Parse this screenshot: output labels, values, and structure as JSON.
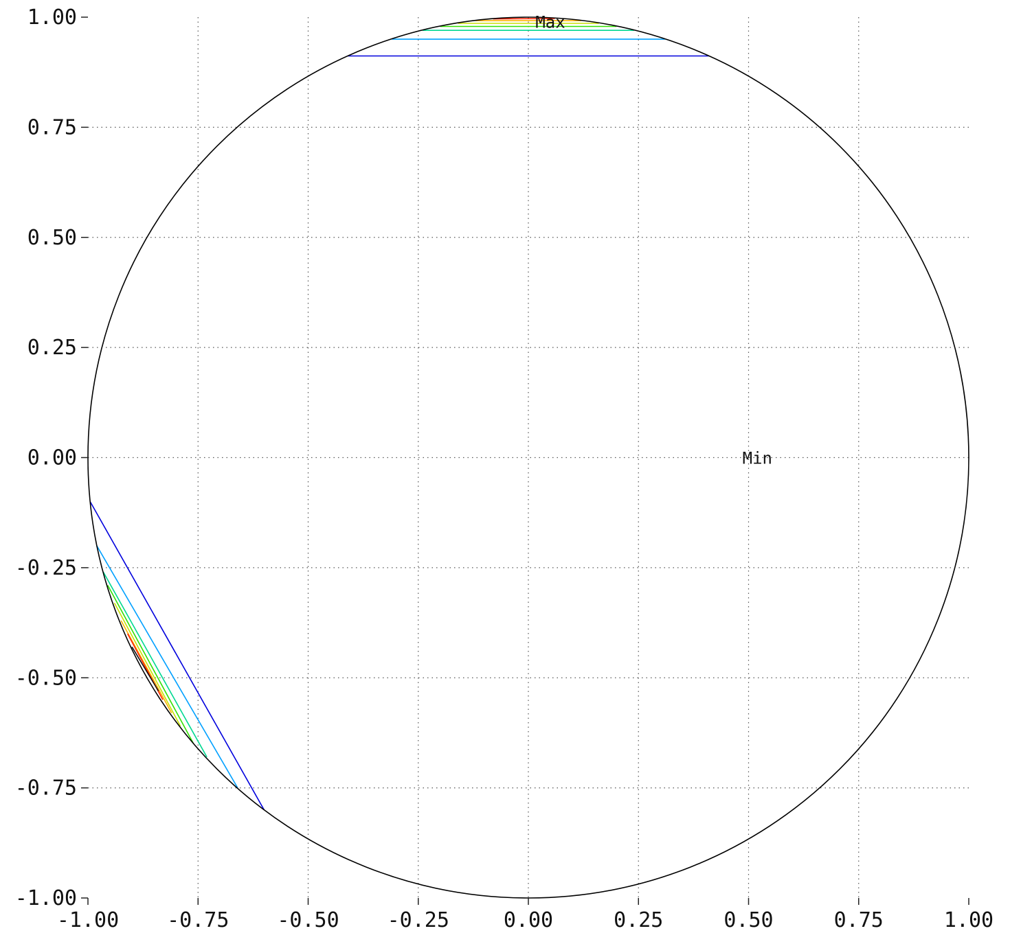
{
  "chart_data": {
    "type": "contour",
    "title": "",
    "xlabel": "",
    "ylabel": "",
    "xlim": [
      -1.0,
      1.0
    ],
    "ylim": [
      -1.0,
      1.0
    ],
    "grid": true,
    "x_ticks": [
      -1.0,
      -0.75,
      -0.5,
      -0.25,
      0.0,
      0.25,
      0.5,
      0.75,
      1.0
    ],
    "y_ticks": [
      -1.0,
      -0.75,
      -0.5,
      -0.25,
      0.0,
      0.25,
      0.5,
      0.75,
      1.0
    ],
    "x_tick_labels": [
      "-1.00",
      "-0.75",
      "-0.50",
      "-0.25",
      "0.00",
      "0.25",
      "0.50",
      "0.75",
      "1.00"
    ],
    "y_tick_labels": [
      "-1.00",
      "-0.75",
      "-0.50",
      "-0.25",
      "0.00",
      "0.25",
      "0.50",
      "0.75",
      "1.00"
    ],
    "boundary": {
      "shape": "unit-circle",
      "color": "#000000"
    },
    "annotations": [
      {
        "text": "Max",
        "x": 0.05,
        "y": 0.99
      },
      {
        "text": "Min",
        "x": 0.52,
        "y": 0.0
      }
    ],
    "contours": [
      {
        "color": "#0000dd",
        "points": [
          [
            -0.41,
            0.912
          ],
          [
            0.41,
            0.912
          ]
        ]
      },
      {
        "color": "#00a0ff",
        "points": [
          [
            -0.31,
            0.95
          ],
          [
            0.31,
            0.95
          ]
        ]
      },
      {
        "color": "#00d890",
        "points": [
          [
            -0.24,
            0.97
          ],
          [
            0.24,
            0.97
          ]
        ]
      },
      {
        "color": "#30e000",
        "points": [
          [
            -0.2,
            0.979
          ],
          [
            0.2,
            0.979
          ]
        ]
      },
      {
        "color": "#c8e000",
        "points": [
          [
            -0.16,
            0.986
          ],
          [
            0.16,
            0.986
          ]
        ]
      },
      {
        "color": "#ffb000",
        "points": [
          [
            -0.12,
            0.992
          ],
          [
            0.12,
            0.992
          ]
        ]
      },
      {
        "color": "#ff2000",
        "points": [
          [
            -0.08,
            0.996
          ],
          [
            0.06,
            0.997
          ]
        ]
      },
      {
        "color": "#0000dd",
        "points": [
          [
            -0.995,
            -0.1
          ],
          [
            -0.6,
            -0.8
          ]
        ]
      },
      {
        "color": "#00a0ff",
        "points": [
          [
            -0.98,
            -0.2
          ],
          [
            -0.66,
            -0.75
          ]
        ]
      },
      {
        "color": "#00d890",
        "points": [
          [
            -0.965,
            -0.26
          ],
          [
            -0.73,
            -0.68
          ]
        ]
      },
      {
        "color": "#30e000",
        "points": [
          [
            -0.955,
            -0.29
          ],
          [
            -0.76,
            -0.65
          ]
        ]
      },
      {
        "color": "#c8e000",
        "points": [
          [
            -0.94,
            -0.33
          ],
          [
            -0.79,
            -0.61
          ]
        ]
      },
      {
        "color": "#ffb000",
        "points": [
          [
            -0.925,
            -0.37
          ],
          [
            -0.81,
            -0.58
          ]
        ]
      },
      {
        "color": "#ff2000",
        "points": [
          [
            -0.91,
            -0.4
          ],
          [
            -0.83,
            -0.55
          ]
        ]
      },
      {
        "color": "#111111",
        "points": [
          [
            -0.9,
            -0.43
          ],
          [
            -0.84,
            -0.53
          ]
        ]
      }
    ]
  }
}
